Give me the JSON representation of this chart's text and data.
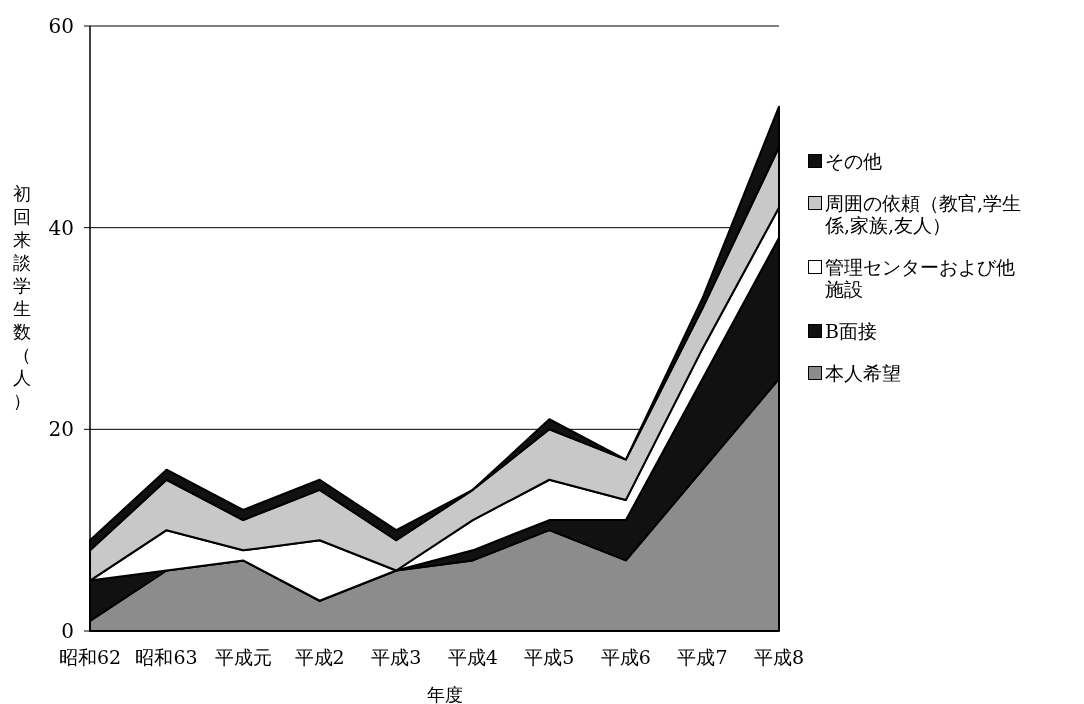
{
  "chart_data": {
    "type": "area",
    "stacked": true,
    "xlabel": "年度",
    "ylabel": "初回来談学生数（人）",
    "categories": [
      "昭和62",
      "昭和63",
      "平成元",
      "平成2",
      "平成3",
      "平成4",
      "平成5",
      "平成6",
      "平成7",
      "平成8"
    ],
    "series": [
      {
        "name": "本人希望",
        "color": "#8c8c8c",
        "values": [
          1,
          6,
          7,
          3,
          6,
          7,
          10,
          7,
          16,
          25
        ]
      },
      {
        "name": "B面接",
        "color": "#111111",
        "values": [
          4,
          0,
          0,
          0,
          0,
          1,
          1,
          4,
          9,
          14
        ]
      },
      {
        "name": "管理センターおよび他施設",
        "color": "#ffffff",
        "values": [
          0,
          4,
          1,
          6,
          0,
          3,
          4,
          2,
          3,
          3
        ]
      },
      {
        "name": "周囲の依頼（教官,学生係,家族,友人）",
        "color": "#c8c8c8",
        "values": [
          3,
          5,
          3,
          5,
          3,
          3,
          5,
          4,
          4,
          6
        ]
      },
      {
        "name": "その他",
        "color": "#111111",
        "values": [
          1,
          1,
          1,
          1,
          1,
          0,
          1,
          0,
          1,
          4
        ]
      }
    ],
    "ylim": [
      0,
      60
    ],
    "yticks": [
      0,
      20,
      40,
      60
    ],
    "grid": "y",
    "legend": "right"
  }
}
